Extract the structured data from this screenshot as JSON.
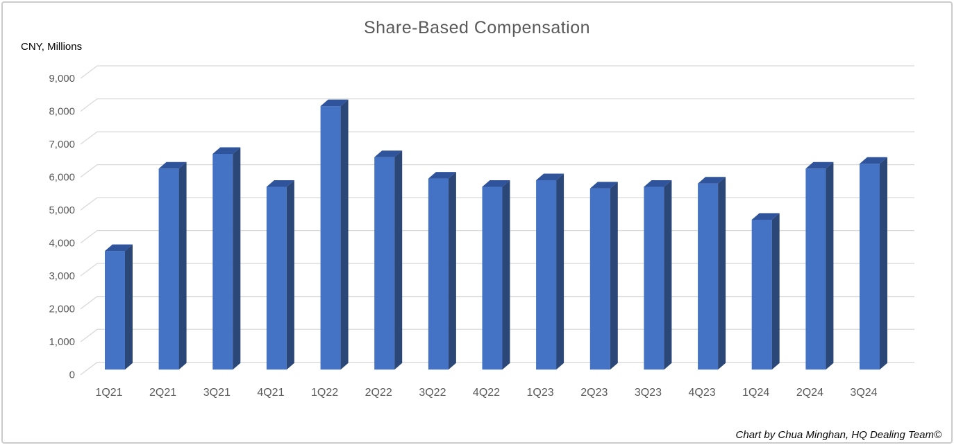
{
  "chart_data": {
    "type": "bar",
    "variant": "3d-column",
    "title": "Share-Based Compensation",
    "ylabel": "CNY, Millions",
    "xlabel": "",
    "categories": [
      "1Q21",
      "2Q21",
      "3Q21",
      "4Q21",
      "1Q22",
      "2Q22",
      "3Q22",
      "4Q22",
      "1Q23",
      "2Q23",
      "3Q23",
      "4Q23",
      "1Q24",
      "2Q24",
      "3Q24"
    ],
    "values": [
      3600,
      6100,
      6550,
      5550,
      8000,
      6450,
      5800,
      5550,
      5750,
      5500,
      5550,
      5650,
      4550,
      6100,
      6250
    ],
    "ylim": [
      0,
      9000
    ],
    "ytick_step": 1000,
    "yticks": [
      0,
      1000,
      2000,
      3000,
      4000,
      5000,
      6000,
      7000,
      8000,
      9000
    ],
    "ytick_labels": [
      "0",
      "1,000",
      "2,000",
      "3,000",
      "4,000",
      "5,000",
      "6,000",
      "7,000",
      "8,000",
      "9,000"
    ],
    "grid": true,
    "legend": false,
    "annotation": "Chart by Chua Minghan, HQ Dealing Team©",
    "colors": {
      "bar_front": "#4472C4",
      "bar_top": "#30549B",
      "bar_side": "#2B4778",
      "gridline": "#D9D9D9",
      "axis_text": "#595959",
      "title_text": "#595959",
      "frame_border": "#CBCBCB"
    }
  }
}
